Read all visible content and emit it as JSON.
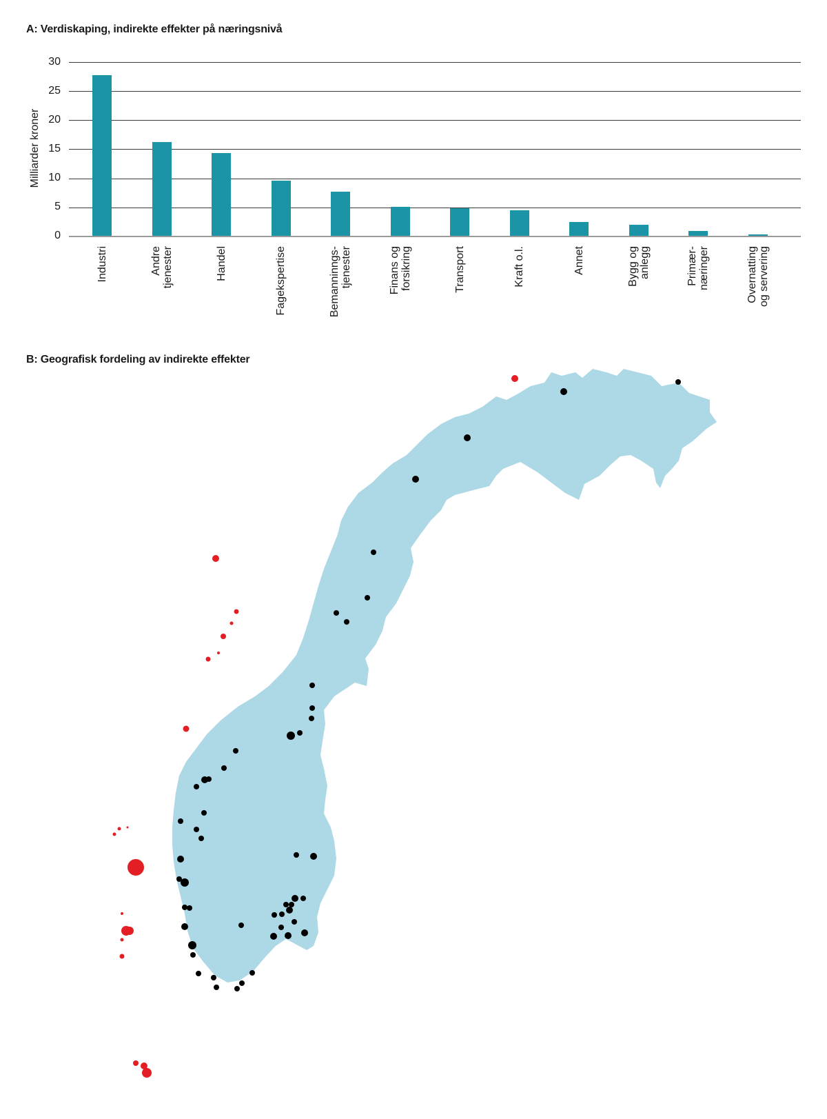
{
  "panel_a": {
    "title": "A: Verdiskaping, indirekte effekter på næringsnivå",
    "ylabel": "Milliarder kroner",
    "yticks": [
      "30",
      "25",
      "20",
      "15",
      "10",
      "5",
      "0"
    ]
  },
  "panel_b": {
    "title": "B: Geografisk fordeling av indirekte effekter"
  },
  "colors": {
    "bar": "#1a94a6",
    "map_land": "#add8e6",
    "onshore_dot": "#000000",
    "offshore_dot": "#e31e24",
    "gridline": "#3a3a3a"
  },
  "chart_data": [
    {
      "type": "bar",
      "title": "A: Verdiskaping, indirekte effekter på næringsnivå",
      "xlabel": "",
      "ylabel": "Milliarder kroner",
      "ylim": [
        0,
        30
      ],
      "yticks": [
        0,
        5,
        10,
        15,
        20,
        25,
        30
      ],
      "grid": true,
      "categories": [
        "Industri",
        "Andre\ntjenester",
        "Handel",
        "Fagekspertise",
        "Bemanninngs-\ntjenester",
        "Finans og\nforsikring",
        "Transport",
        "Kraft o.l.",
        "Annet",
        "Bygg og\nanlegg",
        "Primær-\nnæringer",
        "Overnatting\nog servering"
      ],
      "values": [
        27.8,
        16.3,
        14.4,
        9.6,
        7.7,
        5.1,
        4.9,
        4.5,
        2.5,
        2.0,
        1.0,
        0.4
      ]
    },
    {
      "type": "scatter",
      "title": "B: Geografisk fordeling av indirekte effekter",
      "description": "Map of Norway; black dots mark onshore locations of indirect effects, red dots mark offshore installations (dot size ~ magnitude)",
      "series": [
        {
          "name": "onshore",
          "color": "#000000"
        },
        {
          "name": "offshore",
          "color": "#e31e24"
        }
      ]
    }
  ]
}
